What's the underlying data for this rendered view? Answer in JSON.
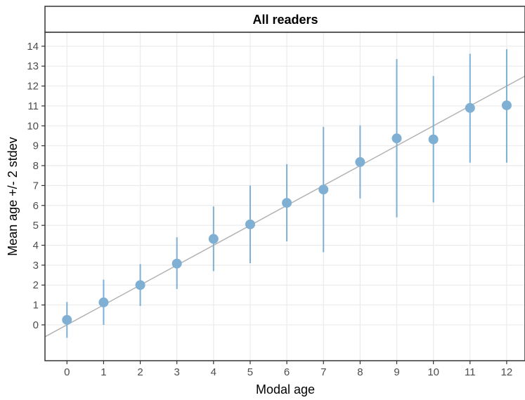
{
  "chart_data": {
    "type": "scatter",
    "facet_title": "All readers",
    "xlabel": "Modal age",
    "ylabel": "Mean age +/- 2 stdev",
    "x_ticks": [
      0,
      1,
      2,
      3,
      4,
      5,
      6,
      7,
      8,
      9,
      10,
      11,
      12
    ],
    "y_ticks": [
      0,
      1,
      2,
      3,
      4,
      5,
      6,
      7,
      8,
      9,
      10,
      11,
      12,
      13,
      14
    ],
    "xlim": [
      -0.6,
      12.5
    ],
    "ylim": [
      -1.8,
      14.7
    ],
    "grid": true,
    "points": [
      {
        "x": 0,
        "mean": 0.25,
        "low": -0.65,
        "high": 1.15
      },
      {
        "x": 1,
        "mean": 1.13,
        "low": 0.0,
        "high": 2.27
      },
      {
        "x": 2,
        "mean": 2.0,
        "low": 0.95,
        "high": 3.05
      },
      {
        "x": 3,
        "mean": 3.08,
        "low": 1.8,
        "high": 4.4
      },
      {
        "x": 4,
        "mean": 4.32,
        "low": 2.7,
        "high": 5.95
      },
      {
        "x": 5,
        "mean": 5.05,
        "low": 3.1,
        "high": 7.0
      },
      {
        "x": 6,
        "mean": 6.13,
        "low": 4.2,
        "high": 8.07
      },
      {
        "x": 7,
        "mean": 6.8,
        "low": 3.65,
        "high": 9.95
      },
      {
        "x": 8,
        "mean": 8.18,
        "low": 6.35,
        "high": 10.02
      },
      {
        "x": 9,
        "mean": 9.37,
        "low": 5.4,
        "high": 13.35
      },
      {
        "x": 10,
        "mean": 9.32,
        "low": 6.15,
        "high": 12.5
      },
      {
        "x": 11,
        "mean": 10.9,
        "low": 8.15,
        "high": 13.62
      },
      {
        "x": 12,
        "mean": 11.03,
        "low": 8.15,
        "high": 13.85
      }
    ],
    "reference_line": {
      "intercept": 0,
      "slope": 1
    },
    "colors": {
      "point": "#7fb0d3",
      "errorbar": "#7fb0d3",
      "reference_line": "#b3b3b3",
      "grid": "#ebebeb",
      "panel_border": "#333333"
    }
  }
}
